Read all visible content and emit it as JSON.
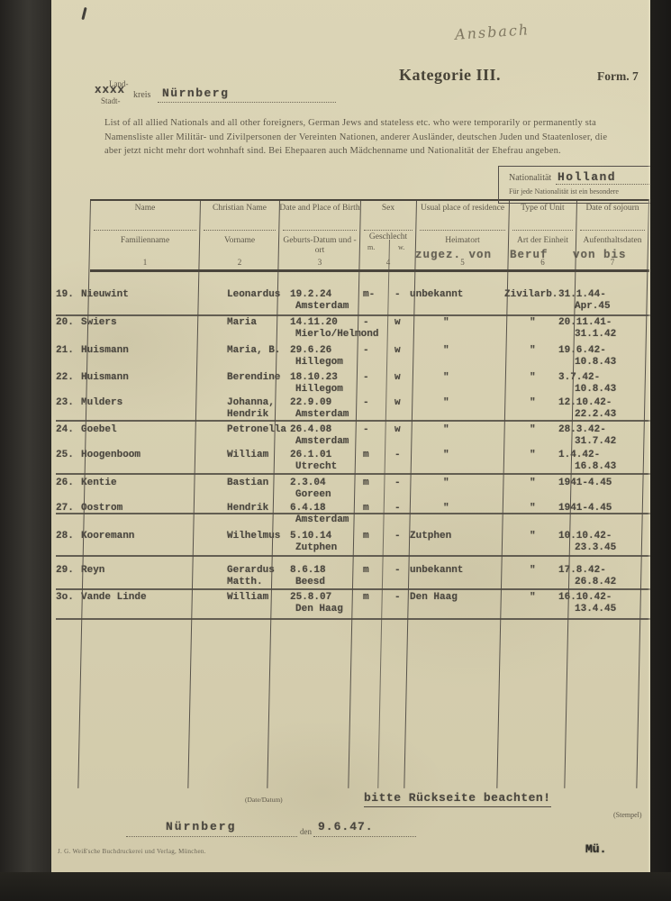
{
  "annotations": {
    "handwriting_top": "Ansbach"
  },
  "header": {
    "title": "Kategorie III.",
    "form_label": "Form. 7",
    "region": {
      "land": "Land-",
      "strikeout": "xxxx",
      "stadt": "Stadt-",
      "kreis_label": "kreis",
      "kreis_value": "Nürnberg"
    },
    "intro_lines": [
      "List of all allied Nationals and all other foreigners, German Jews and stateless etc. who were temporarily or permanently sta",
      "Namensliste aller Militär- und Zivilpersonen der Vereinten Nationen, anderer Ausländer, deutschen Juden und Staatenloser, die",
      "aber jetzt nicht mehr dort wohnhaft sind. Bei Ehepaaren auch Mädchenname und Nationalität der Ehefrau angeben."
    ],
    "nationality_box": {
      "label": "Nationalität",
      "value": "Holland",
      "note": "Für jede Nationalität ist ein besondere"
    }
  },
  "table": {
    "columns": [
      {
        "en": "Name",
        "de": "Familienname",
        "num": "1"
      },
      {
        "en": "Christian Name",
        "de": "Vorname",
        "num": "2"
      },
      {
        "en": "Date and Place of Birth",
        "de": "Geburts-Datum und -ort",
        "num": "3"
      },
      {
        "en": "Sex",
        "de": "Geschlecht",
        "sub_m": "m.",
        "sub_w": "w.",
        "num": "4"
      },
      {
        "en": "Usual place of residence",
        "de": "Heimatort",
        "num": "5"
      },
      {
        "en": "Type of Unit",
        "de": "Art der Einheit",
        "num": "6"
      },
      {
        "en": "Date of sojourn",
        "de": "Aufenthaltsdaten",
        "num": "7"
      }
    ],
    "typed_overlay": [
      "zugez. von",
      "Beruf",
      "von bis"
    ],
    "rows": [
      {
        "no": "19.",
        "name": "Nieuwint",
        "christian": "Leonardus",
        "christian2": "",
        "birth": "19.2.24",
        "birthplace": "Amsterdam",
        "m": "m-",
        "w": "-",
        "residence": "unbekannt",
        "unit": "Zivilarb.",
        "date1": "31.1.44-",
        "date2": "Apr.45"
      },
      {
        "no": "20.",
        "name": "Swiers",
        "christian": "Maria",
        "christian2": "",
        "birth": "14.11.20",
        "birthplace": "Mierlo/Helmond",
        "m": "-",
        "w": "w",
        "residence": "\"",
        "unit": "\"",
        "date1": "20.11.41-",
        "date2": "31.1.42"
      },
      {
        "no": "21.",
        "name": "Huismann",
        "christian": "Maria, B.",
        "christian2": "",
        "birth": "29.6.26",
        "birthplace": "Hillegom",
        "m": "-",
        "w": "w",
        "residence": "\"",
        "unit": "\"",
        "date1": "19.6.42-",
        "date2": "10.8.43"
      },
      {
        "no": "22.",
        "name": "Huismann",
        "christian": "Berendine",
        "christian2": "",
        "birth": "18.10.23",
        "birthplace": "Hillegom",
        "m": "-",
        "w": "w",
        "residence": "\"",
        "unit": "\"",
        "date1": "3.7.42-",
        "date2": "10.8.43"
      },
      {
        "no": "23.",
        "name": "Mulders",
        "christian": "Johanna,",
        "christian2": "Hendrik",
        "birth": "22.9.09",
        "birthplace": "Amsterdam",
        "m": "-",
        "w": "w",
        "residence": "\"",
        "unit": "\"",
        "date1": "12.10.42-",
        "date2": "22.2.43"
      },
      {
        "no": "24.",
        "name": "Goebel",
        "christian": "Petronella",
        "christian2": "",
        "birth": "26.4.08",
        "birthplace": "Amsterdam",
        "m": "-",
        "w": "w",
        "residence": "\"",
        "unit": "\"",
        "date1": "28.3.42-",
        "date2": "31.7.42"
      },
      {
        "no": "25.",
        "name": "Hoogenboom",
        "christian": "William",
        "christian2": "",
        "birth": "26.1.01",
        "birthplace": "Utrecht",
        "m": "m",
        "w": "-",
        "residence": "\"",
        "unit": "\"",
        "date1": "1.4.42-",
        "date2": "16.8.43"
      },
      {
        "no": "26.",
        "name": "Kentie",
        "christian": "Bastian",
        "christian2": "",
        "birth": "2.3.04",
        "birthplace": "Goreen",
        "m": "m",
        "w": "-",
        "residence": "\"",
        "unit": "\"",
        "date1": "1941-4.45",
        "date2": ""
      },
      {
        "no": "27.",
        "name": "Oostrom",
        "christian": "Hendrik",
        "christian2": "",
        "birth": "6.4.18",
        "birthplace": "Amsterdam",
        "m": "m",
        "w": "-",
        "residence": "\"",
        "unit": "\"",
        "date1": "1941-4.45",
        "date2": ""
      },
      {
        "no": "28.",
        "name": "Kooremann",
        "christian": "Wilhelmus",
        "christian2": "",
        "birth": "5.10.14",
        "birthplace": "Zutphen",
        "m": "m",
        "w": "-",
        "residence": "Zutphen",
        "unit": "\"",
        "date1": "10.10.42-",
        "date2": "23.3.45"
      },
      {
        "no": "29.",
        "name": "Reyn",
        "christian": "Gerardus",
        "christian2": "Matth.",
        "birth": "8.6.18",
        "birthplace": "Beesd",
        "m": "m",
        "w": "-",
        "residence": "unbekannt",
        "unit": "\"",
        "date1": "17.8.42-",
        "date2": "26.8.42"
      },
      {
        "no": "3o.",
        "name": "Vande Linde",
        "christian": "William",
        "christian2": "",
        "birth": "25.8.07",
        "birthplace": "Den Haag",
        "m": "m",
        "w": "-",
        "residence": "Den Haag",
        "unit": "\"",
        "date1": "16.10.42-",
        "date2": "13.4.45"
      }
    ]
  },
  "footer": {
    "date_label": "(Date/Datum)",
    "reverse_note": "bitte Rückseite beachten!",
    "place": "Nürnberg",
    "den_label": "den",
    "date_value": "9.6.47.",
    "printer_line": "J. G. Weiß'sche Buchdruckerei und Verlag, München.",
    "stamp_label": "(Stempel)",
    "stamp_mark": "Mü."
  },
  "colors": {
    "paper": "#d8d1b2",
    "ink_typed": "#4a463e",
    "ink_print": "#5d5749",
    "surround": "#24221f"
  }
}
